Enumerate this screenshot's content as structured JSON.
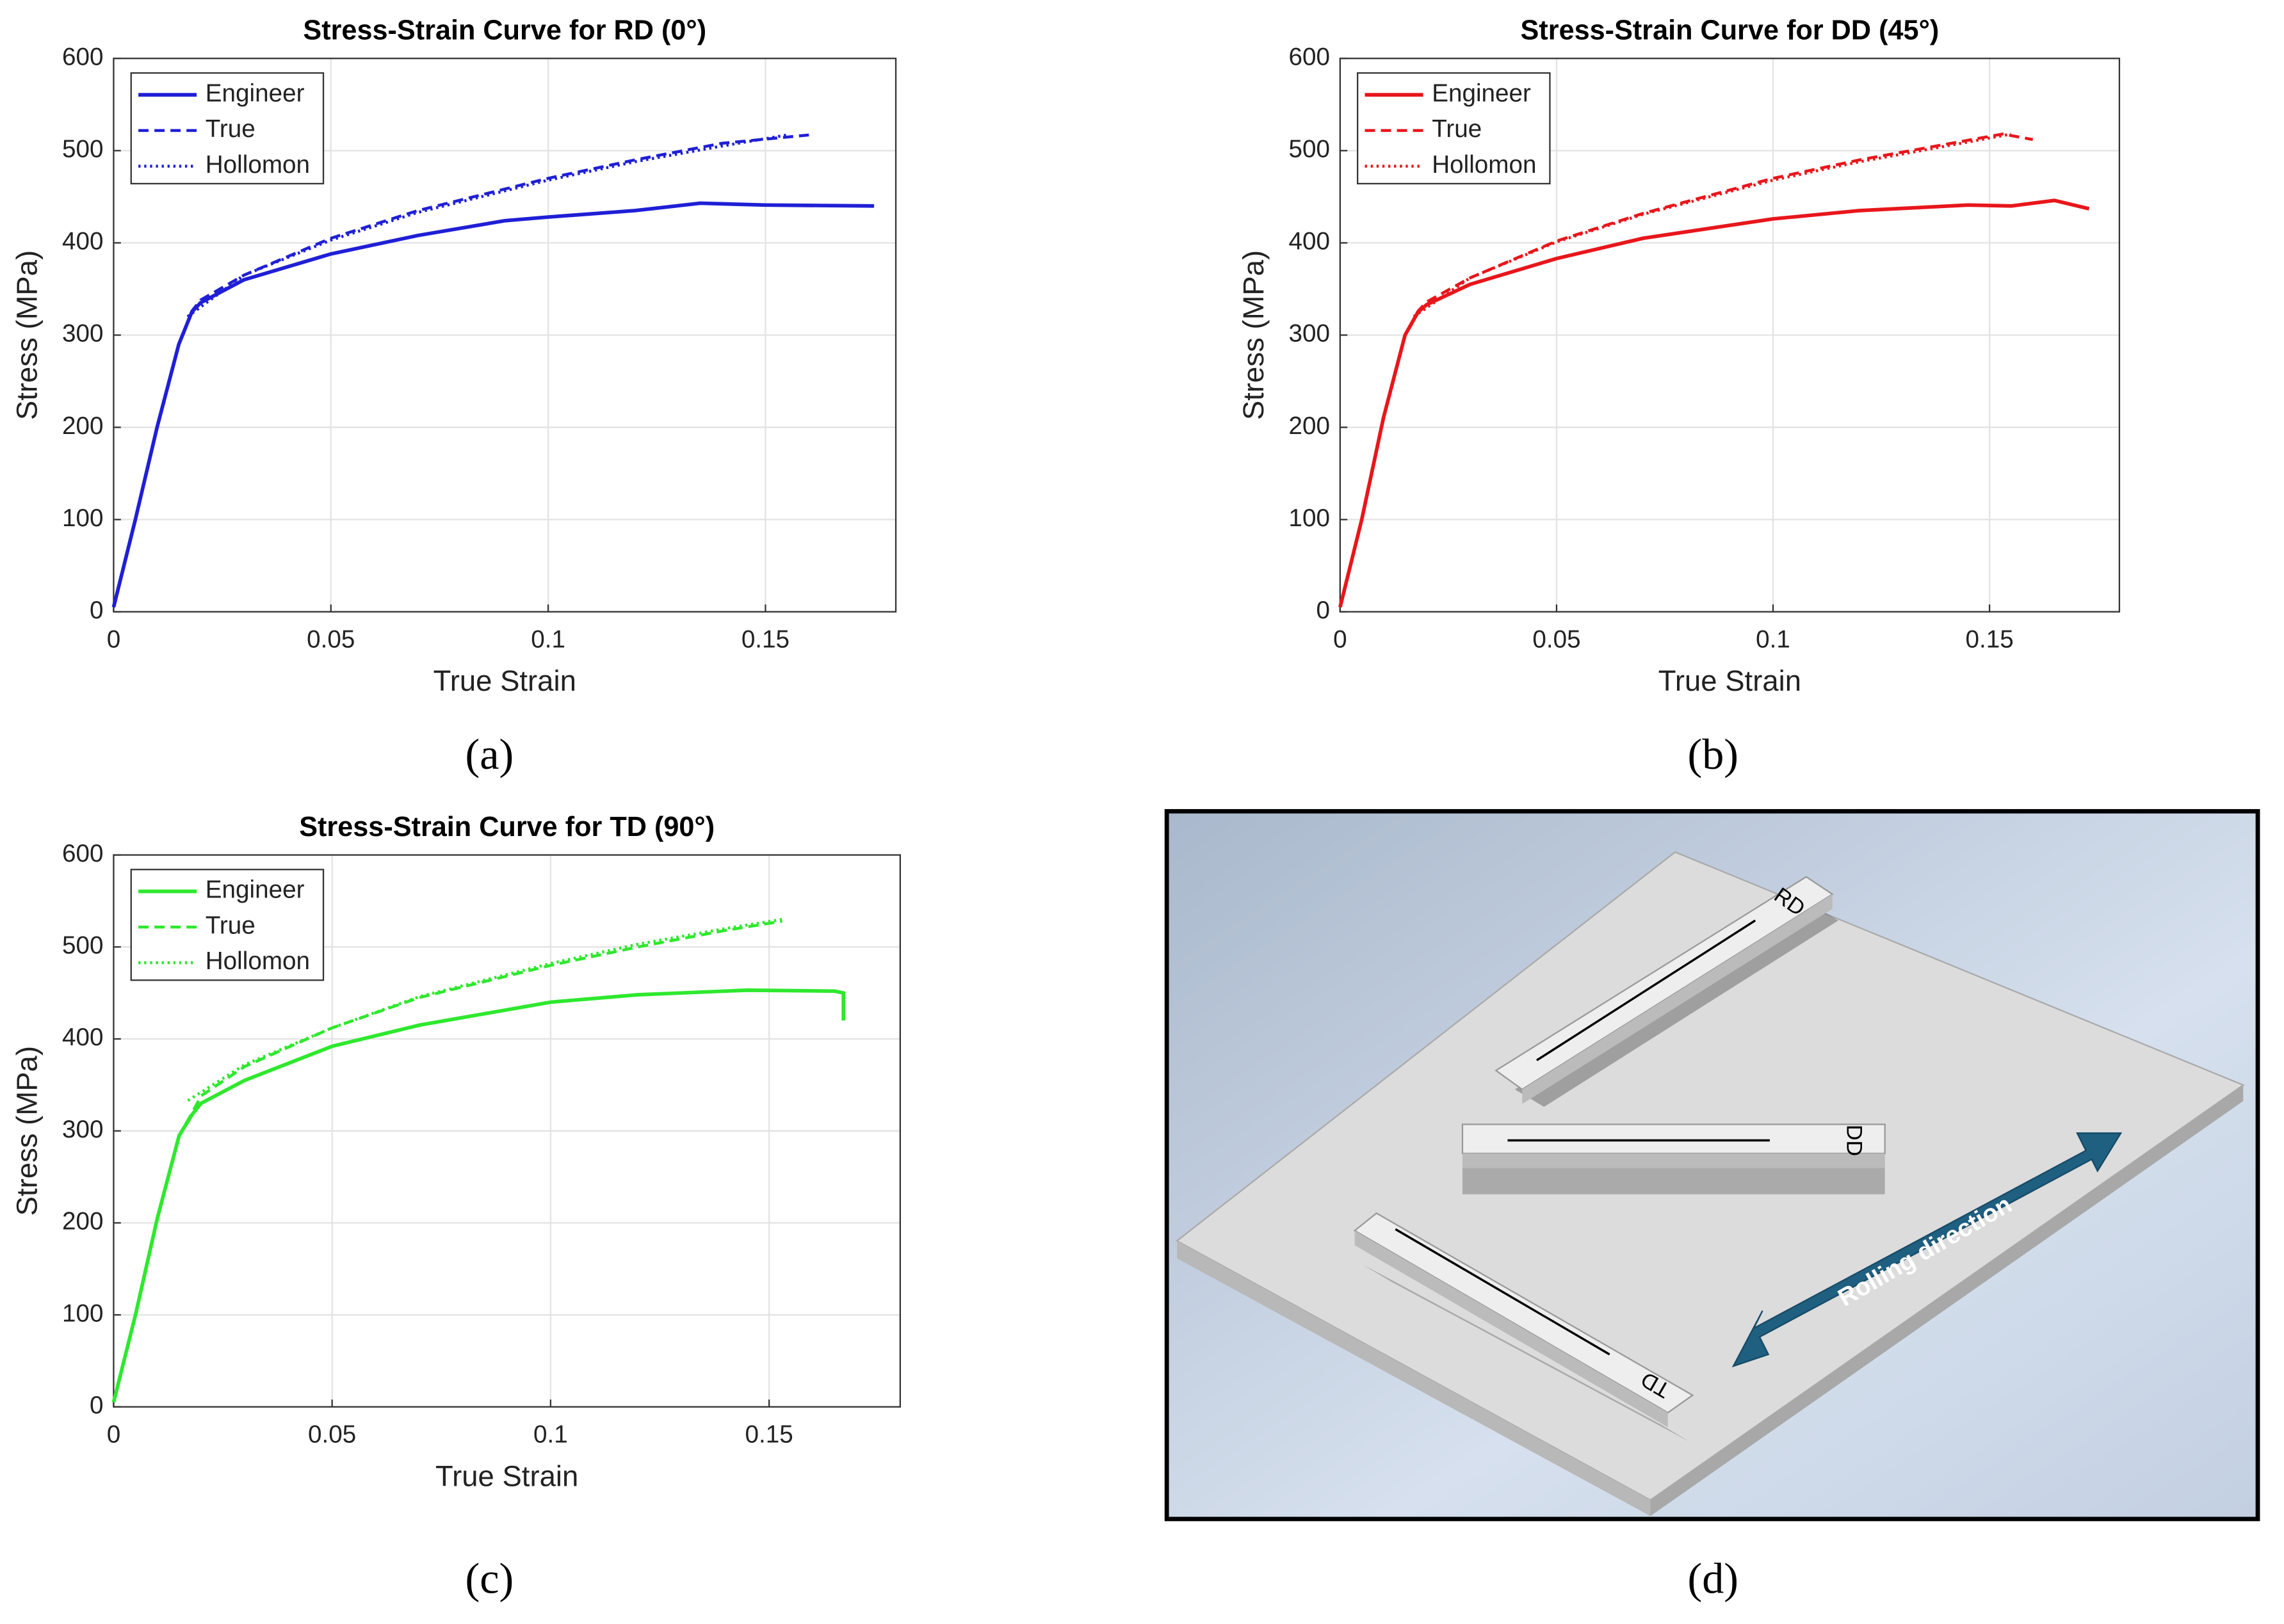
{
  "chart_data": [
    {
      "type": "line",
      "title": "Stress-Strain Curve for RD (0°)",
      "xlabel": "True Strain",
      "ylabel": "Stress (MPa)",
      "xlim": [
        0,
        0.18
      ],
      "xticks": [
        0,
        0.05,
        0.1,
        0.15
      ],
      "ylim": [
        0,
        600
      ],
      "yticks": [
        0,
        100,
        200,
        300,
        400,
        500,
        600
      ],
      "grid": true,
      "legend": "upper left",
      "series": [
        {
          "name": "Engineer",
          "color": "#1f1fd6",
          "dash": "solid",
          "x": [
            0,
            0.005,
            0.01,
            0.015,
            0.018,
            0.02,
            0.03,
            0.05,
            0.07,
            0.09,
            0.1,
            0.12,
            0.135,
            0.15,
            0.175
          ],
          "values": [
            5,
            100,
            200,
            290,
            325,
            335,
            360,
            388,
            408,
            424,
            428,
            435,
            443,
            441,
            440
          ]
        },
        {
          "name": "True",
          "color": "#1f1fd6",
          "dash": "dashed",
          "x": [
            0,
            0.005,
            0.01,
            0.015,
            0.018,
            0.02,
            0.03,
            0.05,
            0.07,
            0.1,
            0.12,
            0.14,
            0.16
          ],
          "values": [
            5,
            100,
            200,
            290,
            326,
            338,
            365,
            405,
            435,
            470,
            490,
            508,
            517
          ]
        },
        {
          "name": "Hollomon",
          "color": "#1f1fd6",
          "dash": "dotted",
          "x": [
            0.017,
            0.03,
            0.05,
            0.07,
            0.1,
            0.12,
            0.14,
            0.155
          ],
          "values": [
            320,
            365,
            403,
            433,
            468,
            488,
            505,
            517
          ]
        }
      ]
    },
    {
      "type": "line",
      "title": "Stress-Strain Curve for DD (45°)",
      "xlabel": "True Strain",
      "ylabel": "Stress (MPa)",
      "xlim": [
        0,
        0.18
      ],
      "xticks": [
        0,
        0.05,
        0.1,
        0.15
      ],
      "ylim": [
        0,
        600
      ],
      "yticks": [
        0,
        100,
        200,
        300,
        400,
        500,
        600
      ],
      "grid": true,
      "legend": "upper left",
      "series": [
        {
          "name": "Engineer",
          "color": "#e8161b",
          "dash": "solid",
          "x": [
            0,
            0.005,
            0.01,
            0.015,
            0.018,
            0.02,
            0.03,
            0.05,
            0.07,
            0.1,
            0.12,
            0.145,
            0.155,
            0.165,
            0.173
          ],
          "values": [
            5,
            100,
            210,
            300,
            325,
            333,
            355,
            383,
            405,
            426,
            435,
            441,
            440,
            446,
            437
          ]
        },
        {
          "name": "True",
          "color": "#e8161b",
          "dash": "dashed",
          "x": [
            0,
            0.005,
            0.01,
            0.015,
            0.018,
            0.02,
            0.03,
            0.05,
            0.07,
            0.1,
            0.12,
            0.14,
            0.153,
            0.16
          ],
          "values": [
            5,
            100,
            210,
            300,
            326,
            336,
            362,
            402,
            432,
            470,
            490,
            507,
            518,
            512
          ]
        },
        {
          "name": "Hollomon",
          "color": "#e8161b",
          "dash": "dotted",
          "x": [
            0.017,
            0.03,
            0.05,
            0.07,
            0.1,
            0.12,
            0.14,
            0.155
          ],
          "values": [
            320,
            362,
            401,
            431,
            468,
            488,
            505,
            518
          ]
        }
      ]
    },
    {
      "type": "line",
      "title": "Stress-Strain Curve for TD (90°)",
      "xlabel": "True Strain",
      "ylabel": "Stress (MPa)",
      "xlim": [
        0,
        0.18
      ],
      "xticks": [
        0,
        0.05,
        0.1,
        0.15
      ],
      "ylim": [
        0,
        600
      ],
      "yticks": [
        0,
        100,
        200,
        300,
        400,
        500,
        600
      ],
      "grid": true,
      "legend": "upper left",
      "series": [
        {
          "name": "Engineer",
          "color": "#2ee82e",
          "dash": "solid",
          "x": [
            0,
            0.005,
            0.01,
            0.015,
            0.018,
            0.02,
            0.03,
            0.05,
            0.07,
            0.1,
            0.12,
            0.145,
            0.165,
            0.167,
            0.167
          ],
          "values": [
            5,
            100,
            205,
            295,
            318,
            330,
            355,
            392,
            415,
            440,
            448,
            453,
            452,
            450,
            420
          ]
        },
        {
          "name": "True",
          "color": "#2ee82e",
          "dash": "dashed",
          "x": [
            0,
            0.005,
            0.01,
            0.015,
            0.018,
            0.02,
            0.03,
            0.05,
            0.07,
            0.1,
            0.12,
            0.14,
            0.153
          ],
          "values": [
            5,
            100,
            205,
            295,
            320,
            338,
            370,
            412,
            445,
            480,
            500,
            518,
            528
          ]
        },
        {
          "name": "Hollomon",
          "color": "#2ee82e",
          "dash": "dotted",
          "x": [
            0.017,
            0.03,
            0.05,
            0.07,
            0.1,
            0.12,
            0.14,
            0.153
          ],
          "values": [
            333,
            372,
            412,
            446,
            482,
            503,
            520,
            530
          ]
        }
      ]
    }
  ],
  "panel_labels": [
    "(a)",
    "(b)",
    "(c)",
    "(d)"
  ],
  "illustration": {
    "specimens": [
      "RD",
      "DD",
      "TD"
    ],
    "arrow_label": "Rolling direction"
  }
}
